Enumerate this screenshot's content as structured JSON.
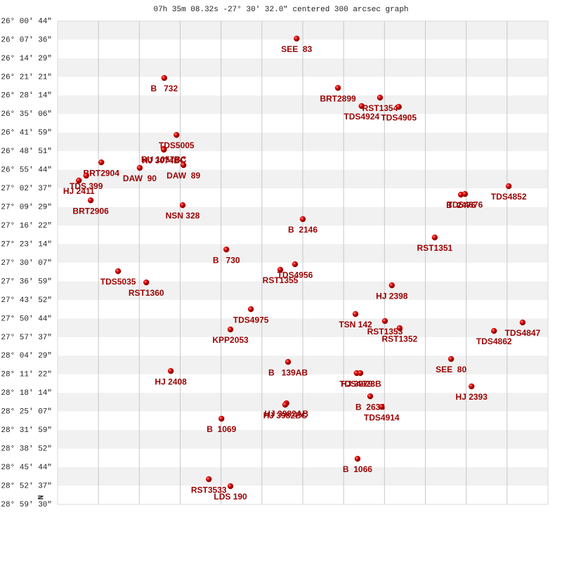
{
  "chart_data": {
    "type": "scatter",
    "title": "07h 35m 08.32s -27° 30′ 32.0\" centered 300 arcsec graph",
    "north_label": "N",
    "xlim": [
      0,
      12
    ],
    "xticks": [
      1,
      2,
      3,
      4,
      5,
      6,
      7,
      8,
      9,
      10,
      11
    ],
    "ylim": [
      -28.9913,
      -26.0122
    ],
    "yticks": [
      {
        "value": -26.0122,
        "label": "-26° 00' 44\""
      },
      {
        "value": -26.1268,
        "label": "-26° 07' 36\""
      },
      {
        "value": -26.2414,
        "label": "-26° 14' 29\""
      },
      {
        "value": -26.3559,
        "label": "-26° 21' 21\""
      },
      {
        "value": -26.4705,
        "label": "-26° 28' 14\""
      },
      {
        "value": -26.5851,
        "label": "-26° 35' 06\""
      },
      {
        "value": -26.6997,
        "label": "-26° 41' 59\""
      },
      {
        "value": -26.8143,
        "label": "-26° 48' 51\""
      },
      {
        "value": -26.9288,
        "label": "-26° 55' 44\""
      },
      {
        "value": -27.0434,
        "label": "-27° 02' 37\""
      },
      {
        "value": -27.158,
        "label": "-27° 09' 29\""
      },
      {
        "value": -27.2726,
        "label": "-27° 16' 22\""
      },
      {
        "value": -27.3872,
        "label": "-27° 23' 14\""
      },
      {
        "value": -27.5017,
        "label": "-27° 30' 07\""
      },
      {
        "value": -27.6163,
        "label": "-27° 36' 59\""
      },
      {
        "value": -27.7309,
        "label": "-27° 43' 52\""
      },
      {
        "value": -27.8455,
        "label": "-27° 50' 44\""
      },
      {
        "value": -27.9601,
        "label": "-27° 57' 37\""
      },
      {
        "value": -28.0747,
        "label": "-28° 04' 29\""
      },
      {
        "value": -28.1892,
        "label": "-28° 11' 22\""
      },
      {
        "value": -28.3038,
        "label": "-28° 18' 14\""
      },
      {
        "value": -28.4184,
        "label": "-28° 25' 07\""
      },
      {
        "value": -28.533,
        "label": "-28° 31' 59\""
      },
      {
        "value": -28.6476,
        "label": "-28° 38' 52\""
      },
      {
        "value": -28.7622,
        "label": "-28° 45' 44\""
      },
      {
        "value": -28.8767,
        "label": "-28° 52' 37\""
      },
      {
        "value": -28.9913,
        "label": "-28° 59' 30\""
      }
    ],
    "grid": true,
    "color": "#cc0000",
    "labels": [
      "SEE  83",
      "B   732",
      "BRT2899",
      "RST1354",
      "TDS4924",
      "TDS4905",
      "TDS5005",
      "BU 1057BC",
      "HJ 3074BC",
      "DAW  89",
      "DAW  90",
      "BRT2904",
      "TDS 399",
      "HJ 2411",
      "BRT2906",
      "NSN 328",
      "B  2146",
      "TDS4852",
      "B  2476",
      "TDS4876",
      "RST1351",
      "B   730",
      "TDS4956",
      "RST1355",
      "TDS5035",
      "RST1360",
      "HJ 2398",
      "TDS4975",
      "TSN 142",
      "RST1353",
      "RST1352",
      "KPP2053",
      "TDS4862",
      "TDS4847",
      "B   139AB",
      "SEE  80",
      "HJ 2408",
      "HJ 3979",
      "TDS4923B",
      "HJ 2393",
      "B  2634",
      "TDS4914",
      "HJ 3982AB",
      "HJ 3982BC",
      "B  1069",
      "B  1066",
      "RST3533",
      "LDS 190"
    ],
    "x": [
      5.85,
      2.61,
      6.86,
      7.89,
      7.44,
      8.35,
      2.91,
      2.6,
      2.6,
      3.08,
      2.01,
      1.07,
      0.7,
      0.52,
      0.81,
      3.06,
      6.0,
      11.04,
      9.87,
      9.97,
      9.23,
      4.13,
      5.81,
      5.45,
      1.48,
      2.17,
      8.18,
      4.73,
      7.29,
      8.01,
      8.37,
      4.23,
      10.68,
      11.38,
      5.64,
      9.63,
      2.77,
      7.32,
      7.41,
      10.13,
      7.65,
      7.93,
      5.6,
      5.57,
      4.01,
      7.34,
      3.7,
      4.23
    ],
    "values": [
      -26.12,
      -26.363,
      -26.424,
      -26.484,
      -26.536,
      -26.541,
      -26.714,
      -26.8,
      -26.805,
      -26.9,
      -26.917,
      -26.883,
      -26.965,
      -26.995,
      -27.117,
      -27.147,
      -27.233,
      -27.03,
      -27.082,
      -27.078,
      -27.346,
      -27.42,
      -27.511,
      -27.545,
      -27.554,
      -27.623,
      -27.641,
      -27.788,
      -27.818,
      -27.861,
      -27.905,
      -27.913,
      -27.922,
      -27.87,
      -28.113,
      -28.095,
      -28.169,
      -28.182,
      -28.182,
      -28.264,
      -28.325,
      -28.39,
      -28.368,
      -28.377,
      -28.463,
      -28.71,
      -28.836,
      -28.879
    ]
  }
}
